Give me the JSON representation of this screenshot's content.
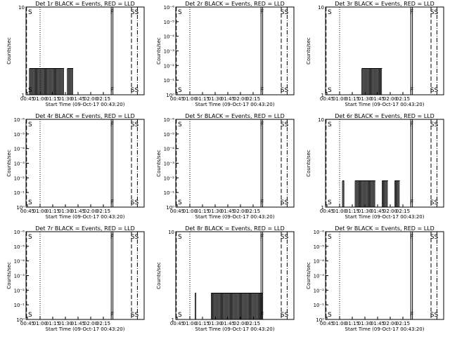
{
  "chart_data": [
    {
      "type": "bar",
      "title": "Det 1r BLACK = Events, RED = LLD",
      "ylabel": "Counts/sec",
      "xlabel": "Start Time (09-Oct-17 00:43:20)",
      "scale": "log",
      "yticks": [
        "1",
        "10"
      ],
      "ylim_exp": [
        0,
        1
      ],
      "event_level": "0.3",
      "event_ranges": [
        [
          4,
          45
        ],
        [
          49,
          56
        ]
      ],
      "markers": [
        {
          "pos": 0,
          "label": "S"
        },
        {
          "pos": 100,
          "label": "F"
        },
        {
          "pos": 124,
          "label": "SS"
        }
      ],
      "xticks": [
        "00:45",
        "01:00",
        "01:15",
        "01:30",
        "01:45",
        "02:00",
        "02:15"
      ]
    },
    {
      "type": "bar",
      "title": "Det 2r BLACK = Events, RED = LLD",
      "ylabel": "Counts/sec",
      "xlabel": "Start Time (09-Oct-17 00:43:20)",
      "scale": "log",
      "yticks": [
        "10⁰",
        "10⁻¹",
        "10⁻²",
        "10⁻³",
        "10⁻⁴",
        "10⁻⁵",
        "10⁻⁶"
      ],
      "ylim_exp": [
        0,
        -6
      ],
      "event_level": null,
      "event_ranges": [],
      "markers": [
        {
          "pos": 0,
          "label": "S"
        },
        {
          "pos": 100,
          "label": "F"
        },
        {
          "pos": 124,
          "label": "SS"
        }
      ],
      "xticks": [
        "00:45",
        "01:00",
        "01:15",
        "01:30",
        "01:45",
        "02:00",
        "02:15"
      ]
    },
    {
      "type": "bar",
      "title": "Det 3r BLACK = Events, RED = LLD",
      "ylabel": "Counts/sec",
      "xlabel": "Start Time (09-Oct-17 00:43:20)",
      "scale": "log",
      "yticks": [
        "1",
        "10"
      ],
      "ylim_exp": [
        0,
        1
      ],
      "event_level": "0.3",
      "event_ranges": [
        [
          43,
          67
        ]
      ],
      "markers": [
        {
          "pos": 0,
          "label": "S"
        },
        {
          "pos": 100,
          "label": "F"
        },
        {
          "pos": 124,
          "label": "SS"
        }
      ],
      "xticks": [
        "00:45",
        "01:00",
        "01:15",
        "01:30",
        "01:45",
        "02:00",
        "02:15"
      ]
    },
    {
      "type": "bar",
      "title": "Det 4r BLACK = Events, RED = LLD",
      "ylabel": "Counts/sec",
      "xlabel": "Start Time (09-Oct-17 00:43:20)",
      "scale": "log",
      "yticks": [
        "10⁰",
        "10⁻¹",
        "10⁻²",
        "10⁻³",
        "10⁻⁴",
        "10⁻⁵",
        "10⁻⁶"
      ],
      "ylim_exp": [
        0,
        -6
      ],
      "event_level": null,
      "event_ranges": [],
      "markers": [
        {
          "pos": 0,
          "label": "S"
        },
        {
          "pos": 100,
          "label": "F"
        },
        {
          "pos": 124,
          "label": "SS"
        }
      ],
      "xticks": [
        "00:45",
        "01:00",
        "01:15",
        "01:30",
        "01:45",
        "02:00",
        "02:15"
      ]
    },
    {
      "type": "bar",
      "title": "Det 5r BLACK = Events, RED = LLD",
      "ylabel": "Counts/sec",
      "xlabel": "Start Time (09-Oct-17 00:43:20)",
      "scale": "log",
      "yticks": [
        "10⁰",
        "10⁻¹",
        "10⁻²",
        "10⁻³",
        "10⁻⁴",
        "10⁻⁵",
        "10⁻⁶"
      ],
      "ylim_exp": [
        0,
        -6
      ],
      "event_level": null,
      "event_ranges": [],
      "markers": [
        {
          "pos": 0,
          "label": "S"
        },
        {
          "pos": 100,
          "label": "F"
        },
        {
          "pos": 124,
          "label": "SS"
        }
      ],
      "xticks": [
        "00:45",
        "01:00",
        "01:15",
        "01:30",
        "01:45",
        "02:00",
        "02:15"
      ]
    },
    {
      "type": "bar",
      "title": "Det 6r BLACK = Events, RED = LLD",
      "ylabel": "Counts/sec",
      "xlabel": "Start Time (09-Oct-17 00:43:20)",
      "scale": "log",
      "yticks": [
        "1",
        "10"
      ],
      "ylim_exp": [
        0,
        1
      ],
      "event_level": "0.3",
      "event_ranges": [
        [
          20,
          22
        ],
        [
          35,
          59
        ],
        [
          67,
          74
        ],
        [
          82,
          88
        ]
      ],
      "markers": [
        {
          "pos": 0,
          "label": "S"
        },
        {
          "pos": 100,
          "label": "F"
        },
        {
          "pos": 124,
          "label": "SS"
        }
      ],
      "xticks": [
        "00:45",
        "01:00",
        "01:15",
        "01:30",
        "01:45",
        "02:00",
        "02:15"
      ]
    },
    {
      "type": "bar",
      "title": "Det 7r BLACK = Events, RED = LLD",
      "ylabel": "Counts/sec",
      "xlabel": "Start Time (09-Oct-17 00:43:20)",
      "scale": "log",
      "yticks": [
        "10⁰",
        "10⁻¹",
        "10⁻²",
        "10⁻³",
        "10⁻⁴",
        "10⁻⁵",
        "10⁻⁶"
      ],
      "ylim_exp": [
        0,
        -6
      ],
      "event_level": null,
      "event_ranges": [],
      "markers": [
        {
          "pos": 0,
          "label": "S"
        },
        {
          "pos": 100,
          "label": "F"
        },
        {
          "pos": 124,
          "label": "SS"
        }
      ],
      "xticks": [
        "00:45",
        "01:00",
        "01:15",
        "01:30",
        "01:45",
        "02:00",
        "02:15"
      ]
    },
    {
      "type": "bar",
      "title": "Det 8r BLACK = Events, RED = LLD",
      "ylabel": "Counts/sec",
      "xlabel": "Start Time (09-Oct-17 00:43:20)",
      "scale": "log",
      "yticks": [
        "1",
        "10"
      ],
      "ylim_exp": [
        0,
        1
      ],
      "event_level": "0.3",
      "event_ranges": [
        [
          23,
          24
        ],
        [
          42,
          103
        ]
      ],
      "markers": [
        {
          "pos": 0,
          "label": "S"
        },
        {
          "pos": 100,
          "label": "F"
        },
        {
          "pos": 124,
          "label": "SS"
        }
      ],
      "xticks": [
        "00:45",
        "01:00",
        "01:15",
        "01:30",
        "01:45",
        "02:00",
        "02:15"
      ]
    },
    {
      "type": "bar",
      "title": "Det 9r BLACK = Events, RED = LLD",
      "ylabel": "Counts/sec",
      "xlabel": "Start Time (09-Oct-17 00:43:20)",
      "scale": "log",
      "yticks": [
        "10⁰",
        "10⁻¹",
        "10⁻²",
        "10⁻³",
        "10⁻⁴",
        "10⁻⁵",
        "10⁻⁶"
      ],
      "ylim_exp": [
        0,
        -6
      ],
      "event_level": null,
      "event_ranges": [],
      "markers": [
        {
          "pos": 0,
          "label": "S"
        },
        {
          "pos": 100,
          "label": "F"
        },
        {
          "pos": 124,
          "label": "SS"
        }
      ],
      "xticks": [
        "00:45",
        "01:00",
        "01:15",
        "01:30",
        "01:45",
        "02:00",
        "02:15"
      ]
    }
  ]
}
